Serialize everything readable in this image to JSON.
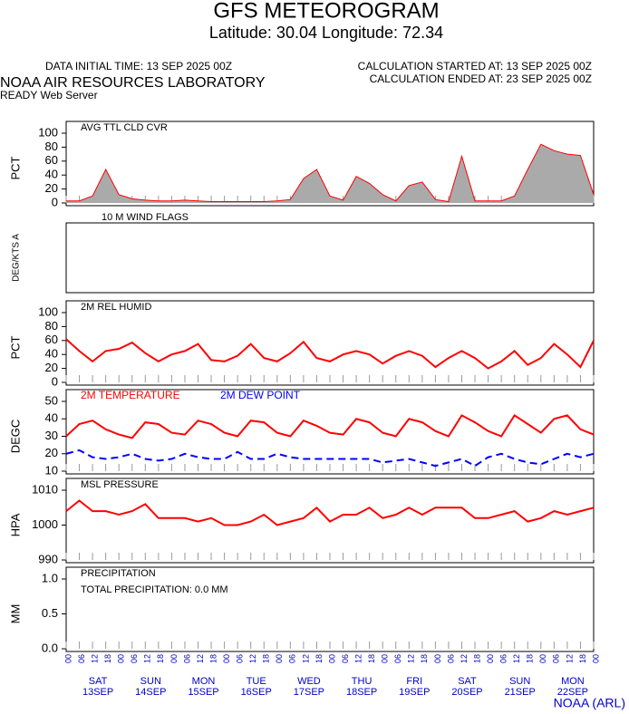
{
  "header": {
    "title": "GFS METEOROGRAM",
    "subtitle": "Latitude: 30.04 Longitude:  72.34",
    "initial": "DATA INITIAL TIME: 13 SEP 2025 00Z",
    "started": "CALCULATION STARTED AT: 13 SEP 2025 00Z",
    "ended": "CALCULATION ENDED AT: 23 SEP 2025 00Z",
    "lab": "NOAA AIR RESOURCES LABORATORY",
    "server": "READY Web Server",
    "credit": "NOAA (ARL)"
  },
  "x": [
    0,
    6,
    12,
    18,
    24,
    30,
    36,
    42,
    48,
    54,
    60,
    66,
    72,
    78,
    84,
    90,
    96,
    102,
    108,
    114,
    120,
    126,
    132,
    138,
    144,
    150,
    156,
    162,
    168,
    174,
    180,
    186,
    192,
    198,
    204,
    210,
    216,
    222,
    228,
    234,
    240
  ],
  "xlim": [
    0,
    240
  ],
  "hour_labels": [
    "00",
    "06",
    "12",
    "18",
    "00",
    "06",
    "12",
    "18",
    "00",
    "06",
    "12",
    "18",
    "00",
    "06",
    "12",
    "18",
    "00",
    "06",
    "12",
    "18",
    "00",
    "06",
    "12",
    "18",
    "00",
    "06",
    "12",
    "18",
    "00",
    "06",
    "12",
    "18",
    "00",
    "06",
    "12",
    "18",
    "00",
    "06",
    "12",
    "18",
    "00"
  ],
  "days": [
    {
      "day": "SAT",
      "date": "13SEP"
    },
    {
      "day": "SUN",
      "date": "14SEP"
    },
    {
      "day": "MON",
      "date": "15SEP"
    },
    {
      "day": "TUE",
      "date": "16SEP"
    },
    {
      "day": "WED",
      "date": "17SEP"
    },
    {
      "day": "THU",
      "date": "18SEP"
    },
    {
      "day": "FRI",
      "date": "19SEP"
    },
    {
      "day": "SAT",
      "date": "20SEP"
    },
    {
      "day": "SUN",
      "date": "21SEP"
    },
    {
      "day": "MON",
      "date": "22SEP"
    }
  ],
  "panels": [
    {
      "type": "area",
      "title": "AVG TTL CLD CVR",
      "ylabel": "PCT",
      "ylim": [
        0,
        100
      ],
      "yticks": [
        0,
        20,
        40,
        60,
        80,
        100
      ],
      "series": [
        {
          "color": "#ff0000",
          "fill": "#aaaaaa",
          "values": [
            3,
            3,
            10,
            48,
            12,
            6,
            4,
            3,
            3,
            4,
            3,
            2,
            2,
            2,
            2,
            2,
            3,
            5,
            35,
            48,
            10,
            4,
            38,
            28,
            12,
            3,
            25,
            30,
            5,
            2,
            67,
            3,
            3,
            3,
            10,
            48,
            84,
            75,
            70,
            68,
            12
          ]
        }
      ]
    },
    {
      "type": "flags",
      "title": "10 M  WIND FLAGS",
      "ylabel": "DEG/KTS  A"
    },
    {
      "type": "line",
      "title": "2M REL HUMID",
      "ylabel": "PCT",
      "ylim": [
        0,
        100
      ],
      "yticks": [
        0,
        20,
        40,
        60,
        80,
        100
      ],
      "series": [
        {
          "color": "#ff0000",
          "values": [
            62,
            45,
            30,
            45,
            48,
            57,
            42,
            30,
            40,
            45,
            55,
            32,
            30,
            38,
            55,
            35,
            30,
            42,
            58,
            35,
            30,
            40,
            45,
            40,
            27,
            38,
            45,
            38,
            22,
            35,
            45,
            35,
            20,
            30,
            45,
            25,
            35,
            55,
            40,
            22,
            60
          ]
        }
      ]
    },
    {
      "type": "line",
      "ylabel": "DEGC",
      "ylim": [
        10,
        50
      ],
      "yticks": [
        10,
        20,
        30,
        40,
        50
      ],
      "series": [
        {
          "name": "2M TEMPERATURE",
          "color": "#ff0000",
          "values": [
            30,
            37,
            39,
            34,
            31,
            29,
            38,
            37,
            32,
            31,
            39,
            37,
            32,
            30,
            39,
            38,
            32,
            30,
            39,
            36,
            32,
            31,
            40,
            38,
            32,
            30,
            40,
            38,
            33,
            30,
            42,
            38,
            33,
            30,
            42,
            37,
            32,
            40,
            42,
            34,
            31
          ]
        },
        {
          "name": "2M  DEW POINT",
          "color": "#0000ff",
          "dash": true,
          "values": [
            20,
            22,
            18,
            17,
            18,
            20,
            17,
            16,
            17,
            20,
            18,
            17,
            17,
            21,
            17,
            17,
            20,
            18,
            17,
            17,
            17,
            17,
            17,
            17,
            15,
            16,
            17,
            15,
            13,
            15,
            17,
            13,
            18,
            20,
            17,
            15,
            14,
            17,
            20,
            18,
            20
          ]
        }
      ]
    },
    {
      "type": "line",
      "title": "MSL PRESSURE",
      "ylabel": "HPA",
      "ylim": [
        990,
        1010
      ],
      "yticks": [
        990,
        1000,
        1010
      ],
      "series": [
        {
          "color": "#ff0000",
          "values": [
            1004,
            1007,
            1004,
            1004,
            1003,
            1004,
            1006,
            1002,
            1002,
            1002,
            1001,
            1002,
            1000,
            1000,
            1001,
            1003,
            1000,
            1001,
            1002,
            1005,
            1001,
            1003,
            1003,
            1005,
            1002,
            1003,
            1005,
            1003,
            1005,
            1005,
            1005,
            1002,
            1002,
            1003,
            1004,
            1001,
            1002,
            1004,
            1003,
            1004,
            1005
          ]
        }
      ]
    },
    {
      "type": "text",
      "title": "PRECIPITATION",
      "note": "TOTAL PRECIPITATION:  0.0 MM",
      "ylabel": "MM",
      "ylim": [
        0,
        1
      ],
      "yticks": [
        {
          "value": 0,
          "label": "0.0"
        },
        0.5,
        {
          "value": 1,
          "label": "1.0"
        }
      ]
    }
  ]
}
